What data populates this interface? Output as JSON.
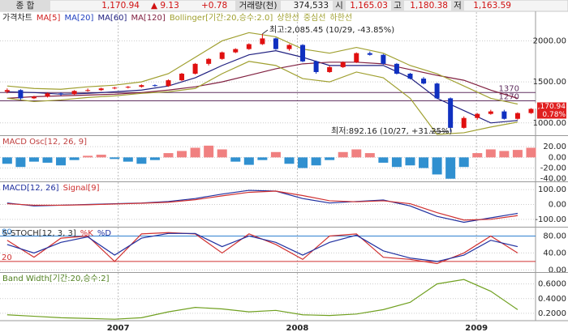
{
  "header": {
    "name": "종 합",
    "price": "1,170.94",
    "change": "▲ 9.13",
    "change_pct": "+0.78",
    "volume_label": "거래량(천)",
    "volume": "374,533",
    "open_label": "시",
    "open": "1,165.03",
    "high_label": "고",
    "high": "1,180.38",
    "low_label": "저",
    "low": "1,163.59"
  },
  "chart_data": [
    {
      "type": "candlestick",
      "title": "가격차트",
      "legend": [
        "MA[5]",
        "MA[20]",
        "MA[60]",
        "MA[120]",
        "Bollinger[기간:20,승수:2.0]",
        "상한선",
        "중심선",
        "하한선"
      ],
      "legend_colors": [
        "#d02020",
        "#2040c0",
        "#202080",
        "#802040",
        "#a0a030",
        "#a0a030",
        "#a0a030",
        "#a0a030"
      ],
      "x": [
        2006.38,
        2006.455,
        2006.53,
        2006.605,
        2006.68,
        2006.755,
        2006.83,
        2006.905,
        2006.98,
        2007.055,
        2007.13,
        2007.205,
        2007.28,
        2007.355,
        2007.43,
        2007.505,
        2007.58,
        2007.655,
        2007.73,
        2007.805,
        2007.88,
        2007.955,
        2008.03,
        2008.105,
        2008.18,
        2008.255,
        2008.33,
        2008.405,
        2008.48,
        2008.555,
        2008.63,
        2008.705,
        2008.78,
        2008.855,
        2008.93,
        2009.005,
        2009.08,
        2009.155,
        2009.23,
        2009.305
      ],
      "open": [
        1380,
        1400,
        1300,
        1320,
        1360,
        1350,
        1390,
        1400,
        1420,
        1430,
        1440,
        1460,
        1450,
        1520,
        1600,
        1720,
        1780,
        1860,
        1900,
        1960,
        2030,
        1900,
        1950,
        1750,
        1620,
        1680,
        1740,
        1850,
        1830,
        1720,
        1600,
        1540,
        1480,
        1300,
        940,
        1060,
        1110,
        1140,
        1050,
        1120
      ],
      "high": [
        1420,
        1410,
        1330,
        1370,
        1370,
        1400,
        1420,
        1430,
        1440,
        1450,
        1470,
        1470,
        1530,
        1610,
        1730,
        1790,
        1870,
        1910,
        1970,
        2085,
        2040,
        1960,
        1960,
        1760,
        1700,
        1750,
        1860,
        1870,
        1840,
        1730,
        1610,
        1560,
        1490,
        1310,
        1080,
        1120,
        1160,
        1160,
        1130,
        1180
      ],
      "low": [
        1360,
        1280,
        1290,
        1310,
        1330,
        1340,
        1380,
        1390,
        1410,
        1420,
        1430,
        1440,
        1440,
        1510,
        1590,
        1700,
        1770,
        1850,
        1890,
        1950,
        1890,
        1880,
        1740,
        1600,
        1610,
        1670,
        1730,
        1820,
        1710,
        1590,
        1530,
        1470,
        1290,
        892,
        930,
        1040,
        1100,
        1040,
        1040,
        1110
      ],
      "close": [
        1400,
        1300,
        1320,
        1360,
        1350,
        1390,
        1400,
        1420,
        1430,
        1440,
        1460,
        1450,
        1520,
        1600,
        1720,
        1780,
        1860,
        1900,
        1960,
        2030,
        1900,
        1950,
        1750,
        1620,
        1680,
        1740,
        1850,
        1830,
        1720,
        1600,
        1540,
        1480,
        1300,
        940,
        1060,
        1110,
        1140,
        1050,
        1120,
        1171
      ],
      "up_color": "#e01010",
      "down_color": "#1030c0",
      "series": [
        {
          "color": "#202080",
          "x": [
            2006.38,
            2006.53,
            2006.68,
            2006.83,
            2006.98,
            2007.13,
            2007.28,
            2007.43,
            2007.58,
            2007.73,
            2007.88,
            2008.03,
            2008.18,
            2008.33,
            2008.48,
            2008.63,
            2008.78,
            2008.93,
            2009.08,
            2009.23
          ],
          "values": [
            1380,
            1370,
            1350,
            1360,
            1380,
            1400,
            1450,
            1550,
            1700,
            1830,
            1880,
            1800,
            1700,
            1700,
            1700,
            1550,
            1300,
            1150,
            1000,
            1030
          ]
        },
        {
          "color": "#802040",
          "x": [
            2006.38,
            2006.53,
            2006.68,
            2006.83,
            2006.98,
            2007.13,
            2007.28,
            2007.43,
            2007.58,
            2007.73,
            2007.88,
            2008.03,
            2008.18,
            2008.33,
            2008.48,
            2008.63,
            2008.78,
            2008.93,
            2009.08,
            2009.23
          ],
          "values": [
            1300,
            1320,
            1330,
            1340,
            1350,
            1370,
            1400,
            1440,
            1500,
            1580,
            1660,
            1720,
            1740,
            1740,
            1720,
            1650,
            1580,
            1520,
            1400,
            1300
          ]
        },
        {
          "color": "#a0a030",
          "x": [
            2006.38,
            2006.53,
            2006.68,
            2006.83,
            2006.98,
            2007.13,
            2007.28,
            2007.43,
            2007.58,
            2007.73,
            2007.88,
            2008.03,
            2008.18,
            2008.33,
            2008.48,
            2008.63,
            2008.78,
            2008.93,
            2009.08,
            2009.23
          ],
          "values": [
            1450,
            1420,
            1410,
            1440,
            1460,
            1500,
            1600,
            1800,
            2000,
            2100,
            2050,
            1900,
            1850,
            1920,
            1850,
            1700,
            1600,
            1450,
            1300,
            1230
          ]
        },
        {
          "color": "#a0a030",
          "x": [
            2006.38,
            2006.53,
            2006.68,
            2006.83,
            2006.98,
            2007.13,
            2007.28,
            2007.43,
            2007.58,
            2007.73,
            2007.88,
            2008.03,
            2008.18,
            2008.33,
            2008.48,
            2008.63,
            2008.78,
            2008.93,
            2009.08,
            2009.23
          ],
          "values": [
            1300,
            1260,
            1280,
            1310,
            1330,
            1360,
            1380,
            1420,
            1600,
            1750,
            1700,
            1540,
            1500,
            1620,
            1550,
            1300,
            860,
            880,
            950,
            1010
          ]
        }
      ],
      "levels": [
        1370,
        1270
      ],
      "annotations": [
        "최고:2,085.45 (10/29, -43.85%)",
        "최저:892.16 (10/27, +31.25%)"
      ],
      "last_label": "1,170.94",
      "last_change": "0.78%",
      "xlim": [
        2006.34,
        2009.33
      ],
      "ylim": [
        850,
        2350
      ],
      "yticks": [
        {
          "value": 2000,
          "label": "2000.00"
        },
        {
          "value": 1500,
          "label": "1500.00"
        },
        {
          "value": 1000,
          "label": "1000.00"
        }
      ]
    },
    {
      "type": "bar",
      "title": "MACD Osc[12, 26, 9]",
      "title_color": "#c04040",
      "pos_color": "#f08080",
      "neg_color": "#3090d0",
      "x": [
        2006.38,
        2006.455,
        2006.53,
        2006.605,
        2006.68,
        2006.755,
        2006.83,
        2006.905,
        2006.98,
        2007.055,
        2007.13,
        2007.205,
        2007.28,
        2007.355,
        2007.43,
        2007.505,
        2007.58,
        2007.655,
        2007.73,
        2007.805,
        2007.88,
        2007.955,
        2008.03,
        2008.105,
        2008.18,
        2008.255,
        2008.33,
        2008.405,
        2008.48,
        2008.555,
        2008.63,
        2008.705,
        2008.78,
        2008.855,
        2008.93,
        2009.005,
        2009.08,
        2009.155,
        2009.23,
        2009.305
      ],
      "values": [
        -12,
        -18,
        -8,
        -10,
        -15,
        -5,
        3,
        5,
        -3,
        -8,
        -12,
        -5,
        8,
        12,
        18,
        22,
        15,
        -8,
        -14,
        -5,
        10,
        -12,
        -20,
        -15,
        -5,
        10,
        15,
        8,
        -10,
        -18,
        -15,
        -20,
        -32,
        -40,
        -18,
        8,
        15,
        12,
        14,
        18
      ],
      "xlim": [
        2006.34,
        2009.33
      ],
      "ylim": [
        -45,
        40
      ],
      "yticks": [
        {
          "value": 20,
          "label": "20.00"
        },
        {
          "value": 0,
          "label": "0.00"
        },
        {
          "value": -20,
          "label": "-20.00"
        },
        {
          "value": -40,
          "label": "-40.00"
        }
      ]
    },
    {
      "type": "line",
      "title_color": "#303030",
      "x": [
        2006.38,
        2006.53,
        2006.68,
        2006.83,
        2006.98,
        2007.13,
        2007.28,
        2007.43,
        2007.58,
        2007.73,
        2007.88,
        2008.03,
        2008.18,
        2008.33,
        2008.48,
        2008.63,
        2008.78,
        2008.93,
        2009.08,
        2009.23
      ],
      "series": [
        {
          "name": "MACD[12, 26]",
          "color": "#2030a0",
          "values": [
            10,
            -10,
            -5,
            0,
            5,
            10,
            20,
            40,
            70,
            95,
            90,
            40,
            10,
            20,
            30,
            -10,
            -80,
            -120,
            -90,
            -60
          ]
        },
        {
          "name": "Signal[9]",
          "color": "#d03030",
          "values": [
            5,
            -5,
            -5,
            -2,
            3,
            8,
            15,
            32,
            58,
            82,
            90,
            60,
            25,
            18,
            25,
            5,
            -55,
            -105,
            -100,
            -75
          ]
        }
      ],
      "xlim": [
        2006.34,
        2009.33
      ],
      "ylim": [
        -150,
        150
      ],
      "yticks": [
        {
          "value": 100,
          "label": "100.00"
        },
        {
          "value": 0,
          "label": "0.00"
        },
        {
          "value": -100,
          "label": "-100.00"
        }
      ]
    },
    {
      "type": "line",
      "title": "S-STOCH[12, 3, 3]",
      "title_color": "#303030",
      "x": [
        2006.38,
        2006.53,
        2006.68,
        2006.83,
        2006.98,
        2007.13,
        2007.28,
        2007.43,
        2007.58,
        2007.73,
        2007.88,
        2008.03,
        2008.18,
        2008.33,
        2008.48,
        2008.63,
        2008.78,
        2008.93,
        2009.08,
        2009.23
      ],
      "series": [
        {
          "name": "%K",
          "color": "#d03030",
          "values": [
            70,
            30,
            75,
            80,
            20,
            85,
            88,
            85,
            40,
            85,
            60,
            25,
            80,
            85,
            30,
            25,
            15,
            40,
            80,
            40
          ]
        },
        {
          "name": "%D",
          "color": "#2030a0",
          "values": [
            60,
            40,
            65,
            78,
            35,
            75,
            86,
            86,
            55,
            80,
            65,
            35,
            65,
            82,
            45,
            28,
            20,
            35,
            70,
            55
          ]
        }
      ],
      "levels": [
        80,
        20
      ],
      "level_colors": [
        "#3080d0",
        "#d03030"
      ],
      "xlim": [
        2006.34,
        2009.33
      ],
      "ylim": [
        -5,
        100
      ],
      "yticks": [
        {
          "value": 80,
          "label": "80.00"
        },
        {
          "value": 40,
          "label": "40.00"
        },
        {
          "value": 0,
          "label": "0.00"
        }
      ]
    },
    {
      "type": "line",
      "title": "Band Width[기간:20,승수:2]",
      "title_color": "#508020",
      "x": [
        2006.38,
        2006.53,
        2006.68,
        2006.83,
        2006.98,
        2007.13,
        2007.28,
        2007.43,
        2007.58,
        2007.73,
        2007.88,
        2008.03,
        2008.18,
        2008.33,
        2008.48,
        2008.63,
        2008.78,
        2008.93,
        2009.08,
        2009.23
      ],
      "series": [
        {
          "color": "#70a020",
          "values": [
            0.18,
            0.16,
            0.14,
            0.13,
            0.12,
            0.14,
            0.22,
            0.28,
            0.26,
            0.22,
            0.24,
            0.18,
            0.17,
            0.19,
            0.25,
            0.35,
            0.6,
            0.66,
            0.5,
            0.25
          ]
        }
      ],
      "xlim": [
        2006.34,
        2009.33
      ],
      "ylim": [
        0.1,
        0.75
      ],
      "yticks": [
        {
          "value": 0.6,
          "label": "0.6000"
        },
        {
          "value": 0.4,
          "label": "0.4000"
        },
        {
          "value": 0.2,
          "label": "0.2000"
        }
      ],
      "xticks": [
        2007,
        2008,
        2009
      ]
    }
  ]
}
